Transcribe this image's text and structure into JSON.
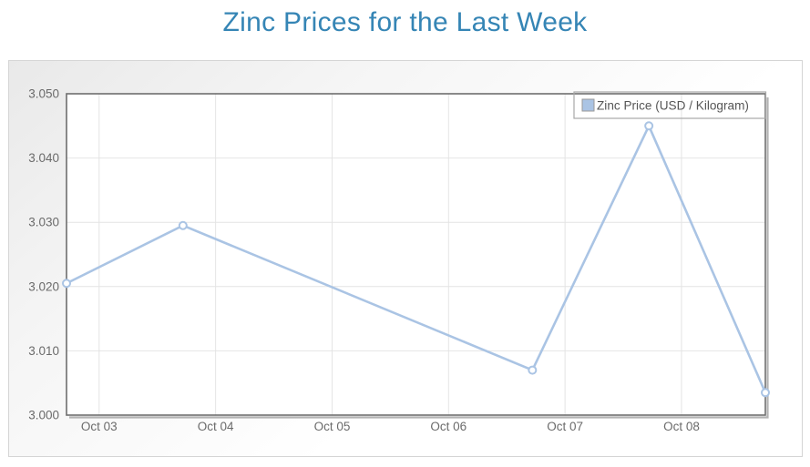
{
  "page": {
    "title": "Zinc Prices for the Last Week"
  },
  "colors": {
    "title": "#3585b5",
    "series_line": "#aac4e4",
    "marker_fill": "#ffffff",
    "grid_line": "#e4e4e4",
    "plot_border": "#6e6e6e",
    "plot_shadow": "#b3b3b3",
    "axis_label": "#6b6b6b",
    "legend_text": "#565656",
    "legend_border": "#a8a8a8",
    "panel_border": "#d5d5d5",
    "plot_background": "#ffffff"
  },
  "chart_data": {
    "type": "line",
    "title": "Zinc Prices for the Last Week",
    "xlabel": "",
    "ylabel": "",
    "ylim": [
      3.0,
      3.05
    ],
    "grid": true,
    "legend_position": "top-right",
    "legend_transparent": true,
    "y_ticks": [
      3.0,
      3.01,
      3.02,
      3.03,
      3.04,
      3.05
    ],
    "y_tick_labels": [
      "3.000",
      "3.010",
      "3.020",
      "3.030",
      "3.040",
      "3.050"
    ],
    "x_tick_labels": [
      "Oct 03",
      "Oct 04",
      "Oct 05",
      "Oct 06",
      "Oct 07",
      "Oct 08"
    ],
    "x_ticks_days": [
      0,
      1,
      2,
      3,
      4,
      5
    ],
    "x_domain_days": [
      -0.28,
      5.72
    ],
    "series": [
      {
        "name": "Zinc Price (USD / Kilogram)",
        "color": "#aac4e4",
        "marker": "open-circle",
        "points": [
          {
            "x_day": -0.28,
            "value": 3.0205
          },
          {
            "x_day": 0.72,
            "value": 3.0295
          },
          {
            "x_day": 3.72,
            "value": 3.007
          },
          {
            "x_day": 4.72,
            "value": 3.045
          },
          {
            "x_day": 5.72,
            "value": 3.0035
          }
        ]
      }
    ]
  }
}
